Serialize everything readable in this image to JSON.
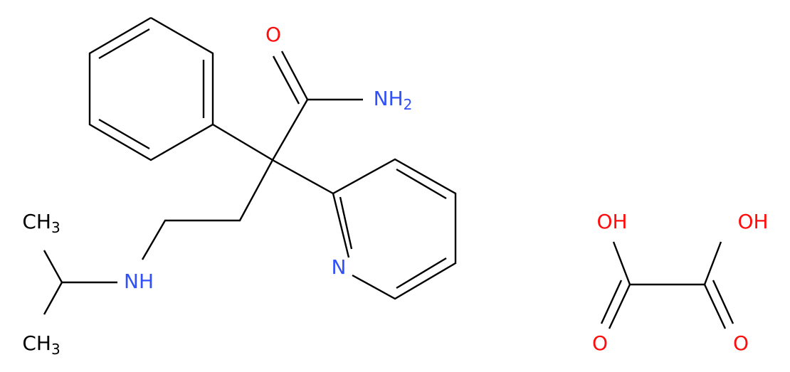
{
  "atoms": [
    {
      "text": "O"
    },
    {
      "text": "NH",
      "sub": "2"
    },
    {
      "text": "N"
    },
    {
      "text": "NH"
    },
    {
      "text": "CH",
      "sub": "3"
    },
    {
      "text": "CH",
      "sub": "3"
    },
    {
      "text": "OH"
    },
    {
      "text": "OH"
    },
    {
      "text": "O"
    },
    {
      "text": "O"
    }
  ]
}
